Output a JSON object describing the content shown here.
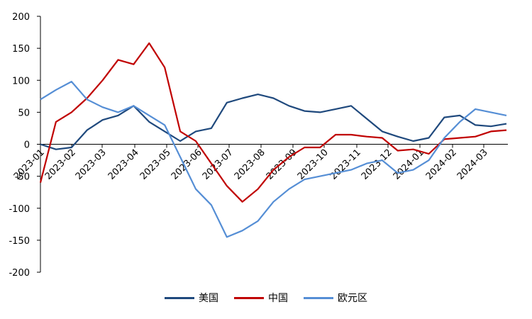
{
  "chart_data": {
    "type": "line",
    "title": "",
    "xlabel": "",
    "ylabel": "",
    "ylim": [
      -200,
      200
    ],
    "yticks": [
      200,
      150,
      100,
      50,
      0,
      -50,
      -100,
      -150,
      -200
    ],
    "xtick_labels": [
      "2023-01",
      "2023-02",
      "2023-03",
      "2023-04",
      "2023-05",
      "2023-06",
      "2023-07",
      "2023-08",
      "2023-09",
      "2023-10",
      "2023-11",
      "2023-12",
      "2024-01",
      "2024-02",
      "2024-03"
    ],
    "grid": false,
    "legend_position": "bottom",
    "x": [
      "2023-01",
      "2023-01-15",
      "2023-02",
      "2023-02-15",
      "2023-03",
      "2023-03-15",
      "2023-04",
      "2023-04-15",
      "2023-05",
      "2023-05-15",
      "2023-06",
      "2023-06-15",
      "2023-07",
      "2023-07-15",
      "2023-08",
      "2023-08-15",
      "2023-09",
      "2023-09-15",
      "2023-10",
      "2023-10-15",
      "2023-11",
      "2023-11-15",
      "2023-12",
      "2023-12-15",
      "2024-01",
      "2024-01-15",
      "2024-02",
      "2024-02-15",
      "2024-03",
      "2024-03-15",
      "2024-03-25"
    ],
    "series": [
      {
        "name": "美国",
        "color": "#1F497D",
        "values": [
          0,
          -8,
          -5,
          22,
          38,
          45,
          60,
          35,
          20,
          5,
          20,
          25,
          65,
          72,
          78,
          72,
          60,
          52,
          50,
          55,
          60,
          40,
          20,
          12,
          5,
          10,
          42,
          45,
          30,
          28,
          32
        ]
      },
      {
        "name": "中国",
        "color": "#C00000",
        "values": [
          -60,
          35,
          50,
          72,
          100,
          132,
          125,
          158,
          120,
          20,
          5,
          -30,
          -65,
          -90,
          -70,
          -40,
          -20,
          -5,
          -5,
          15,
          15,
          12,
          10,
          -10,
          -8,
          -15,
          8,
          10,
          12,
          20,
          22
        ]
      },
      {
        "name": "欧元区",
        "color": "#558ED5",
        "values": [
          70,
          85,
          98,
          70,
          58,
          50,
          60,
          45,
          30,
          -20,
          -70,
          -95,
          -145,
          -135,
          -120,
          -90,
          -70,
          -55,
          -50,
          -45,
          -40,
          -30,
          -25,
          -45,
          -40,
          -25,
          10,
          35,
          55,
          50,
          45
        ]
      }
    ]
  },
  "legend": {
    "items": [
      {
        "label": "美国",
        "color": "#1F497D"
      },
      {
        "label": "中国",
        "color": "#C00000"
      },
      {
        "label": "欧元区",
        "color": "#558ED5"
      }
    ]
  }
}
